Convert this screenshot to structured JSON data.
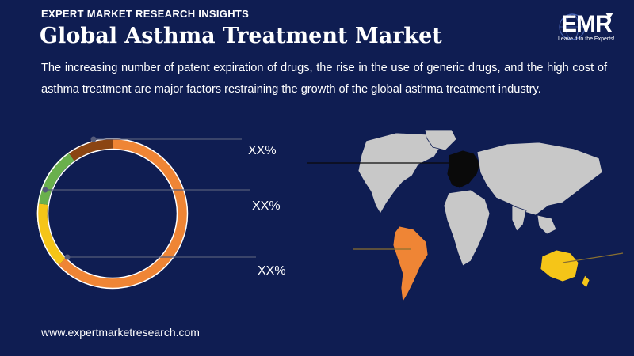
{
  "header": {
    "eyebrow": "EXPERT MARKET RESEARCH INSIGHTS",
    "title": "Global Asthma Treatment Market",
    "description": "The increasing number of patent expiration of drugs, the rise in the use of generic drugs, and the high cost of asthma treatment are major factors restraining the growth of the global asthma treatment industry."
  },
  "logo": {
    "text": "EMR",
    "tagline": "Leave it to the Experts!"
  },
  "donut": {
    "labels": [
      "XX%",
      "XX%",
      "XX%"
    ],
    "colors": [
      "#8b4513",
      "#6ab04c",
      "#f5c518",
      "#ef8535"
    ],
    "ring_outline": "#ffffff"
  },
  "map": {
    "colors": {
      "land": "#c8c8c8",
      "europe": "#0a0a0a",
      "south_america": "#ef8535",
      "australia": "#f5c518"
    }
  },
  "footer": {
    "url": "www.expertmarketresearch.com"
  }
}
